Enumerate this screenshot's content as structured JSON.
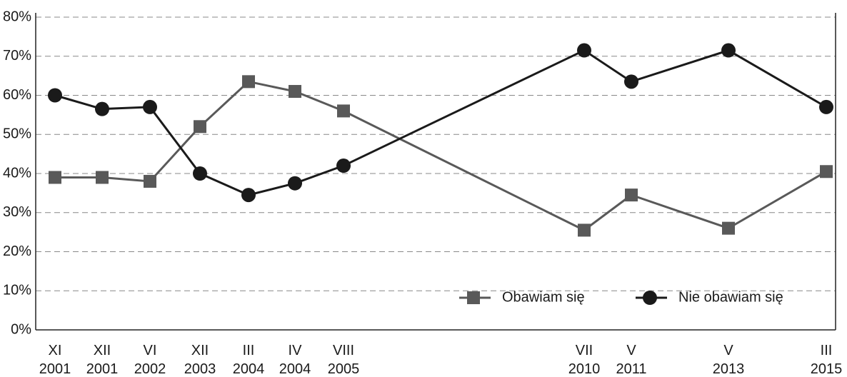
{
  "chart_data": {
    "type": "line",
    "categories": [
      "XI\n2001",
      "XII\n2001",
      "VI\n2002",
      "XII\n2003",
      "III\n2004",
      "IV\n2004",
      "VIII\n2005",
      "VII\n2010",
      "V\n2011",
      "V\n2013",
      "III\n2015"
    ],
    "series": [
      {
        "name": "Obawiam się",
        "color": "#595959",
        "marker": "square",
        "values": [
          39,
          39,
          38,
          52,
          63.5,
          61,
          56,
          25.5,
          34.5,
          26,
          40.5
        ]
      },
      {
        "name": "Nie obawiam się",
        "color": "#1a1a1a",
        "marker": "circle",
        "values": [
          60,
          56.5,
          57,
          40,
          34.5,
          37.5,
          42,
          71.5,
          63.5,
          71.5,
          57
        ]
      }
    ],
    "ylim": [
      0,
      80
    ],
    "yticks": [
      {
        "value": 0,
        "label": "0%"
      },
      {
        "value": 10,
        "label": "10%"
      },
      {
        "value": 20,
        "label": "20%"
      },
      {
        "value": 30,
        "label": "30%"
      },
      {
        "value": 40,
        "label": "40%"
      },
      {
        "value": 50,
        "label": "50%"
      },
      {
        "value": 60,
        "label": "60%"
      },
      {
        "value": 70,
        "label": "70%"
      },
      {
        "value": 80,
        "label": "80%"
      }
    ],
    "grid": true,
    "legend": "lower right"
  }
}
